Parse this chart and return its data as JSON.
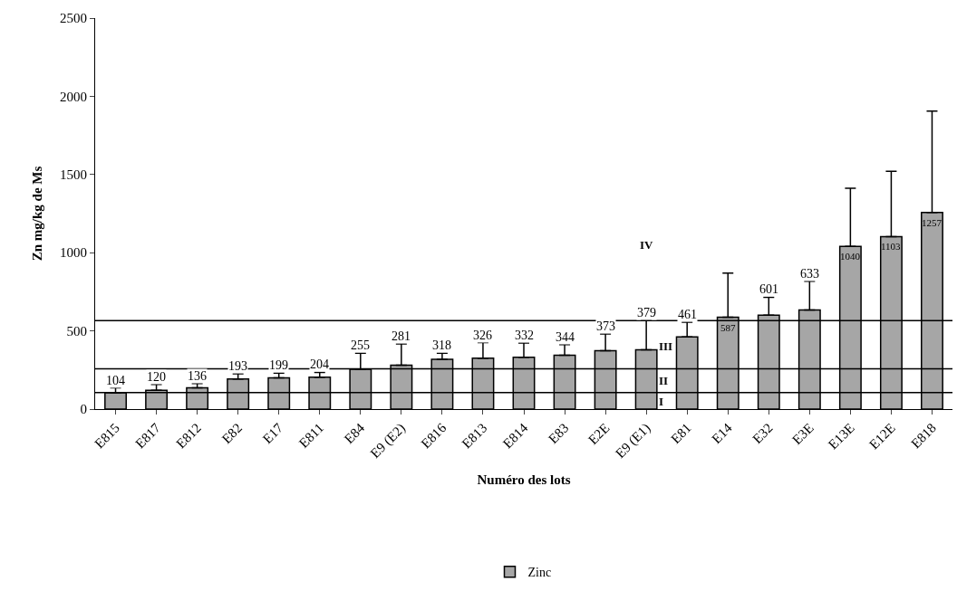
{
  "chart_data": {
    "type": "bar",
    "xlabel": "Numéro des lots",
    "ylabel": "Zn mg/kg de Ms",
    "categories": [
      "E815",
      "E817",
      "E812",
      "E82",
      "E17",
      "E811",
      "E84",
      "E9 (E2)",
      "E816",
      "E813",
      "E814",
      "E83",
      "E2E",
      "E9 (E1)",
      "E81",
      "E14",
      "E32",
      "E3E",
      "E13E",
      "E12E",
      "E818"
    ],
    "series": [
      {
        "name": "Zinc",
        "color": "#a6a6a6",
        "values": [
          104,
          120,
          136,
          193,
          199,
          204,
          255,
          281,
          318,
          326,
          332,
          344,
          373,
          379,
          461,
          587,
          601,
          633,
          1040,
          1103,
          1257
        ],
        "errors": [
          [
            104,
            136
          ],
          [
            120,
            157
          ],
          [
            136,
            163
          ],
          [
            193,
            226
          ],
          [
            199,
            230
          ],
          [
            204,
            235
          ],
          [
            255,
            357
          ],
          [
            281,
            416
          ],
          [
            318,
            358
          ],
          [
            326,
            425
          ],
          [
            332,
            422
          ],
          [
            344,
            413
          ],
          [
            373,
            480
          ],
          [
            379,
            570
          ],
          [
            461,
            556
          ],
          [
            587,
            869
          ],
          [
            601,
            715
          ],
          [
            633,
            818
          ],
          [
            1040,
            1412
          ],
          [
            1103,
            1520
          ],
          [
            1257,
            1906
          ]
        ]
      }
    ],
    "data_labels": true,
    "ylim": [
      0,
      2500
    ],
    "yticks": [
      0,
      500,
      1000,
      1500,
      2000,
      2500
    ],
    "ref_lines": [
      {
        "axis": "y",
        "value": 105,
        "color": "#000000"
      },
      {
        "axis": "y",
        "value": 257,
        "color": "#000000"
      },
      {
        "axis": "y",
        "value": 565,
        "color": "#000000"
      }
    ],
    "annotations": [
      "I",
      "II",
      "III",
      "IV"
    ],
    "legend": "bottom"
  }
}
